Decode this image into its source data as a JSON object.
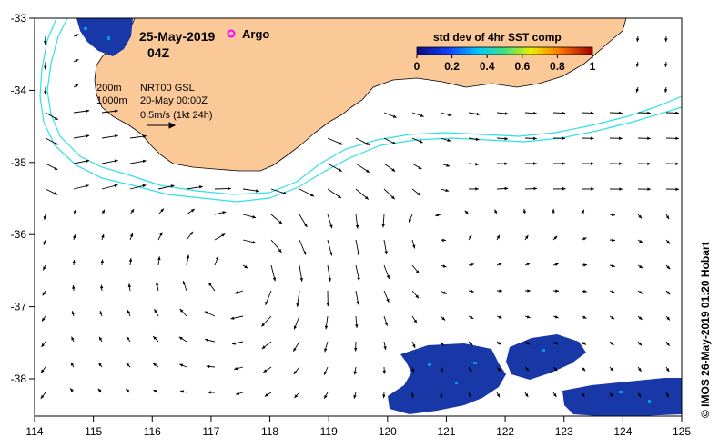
{
  "header": {
    "date": "25-May-2019",
    "hour": "04Z",
    "argo_label": "Argo"
  },
  "legend": {
    "title": "std dev of 4hr SST comp",
    "ticks": [
      "0",
      "0.2",
      "0.4",
      "0.6",
      "0.8",
      "1"
    ]
  },
  "annotations": {
    "depth_200": "200m",
    "depth_1000": "1000m",
    "product": "NRT00 GSL",
    "product_time": "20-May 00:00Z",
    "scale": "0.5m/s (1kt 24h)"
  },
  "credit": "© IMOS 26-May-2019 01:20 Hobart",
  "axes": {
    "x_ticks": [
      "114",
      "115",
      "116",
      "117",
      "118",
      "119",
      "120",
      "121",
      "122",
      "123",
      "124",
      "125"
    ],
    "y_ticks": [
      "-33",
      "-34",
      "-35",
      "-36",
      "-37",
      "-38"
    ]
  },
  "colors": {
    "land": "#fbc898",
    "isobath": "#30e0e8",
    "sst_patch": "#1838a8",
    "argo": "#ff00ff"
  }
}
